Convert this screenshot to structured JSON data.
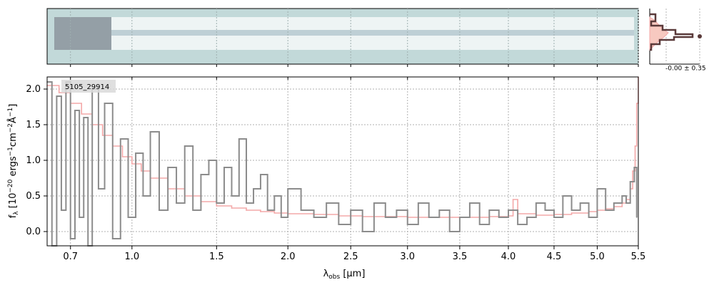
{
  "chart_data": {
    "type": "line",
    "object_label": "5105_29914",
    "xlabel": "λobs [μm]",
    "xlabel_parts": {
      "symbol": "λ",
      "subscript": "obs",
      "unit": " [μm]"
    },
    "ylabel": "fλ [10−20 ergs−1cm−2Å−1]",
    "ylabel_parts": {
      "f": "f",
      "fsub": "λ",
      "a": " [10",
      "e1": "−20",
      "b": " ergs",
      "e2": "−1",
      "c": "cm",
      "e3": "−2",
      "d": "Å",
      "e4": "−1",
      "end": "]"
    },
    "x_ticks": [
      0.7,
      1.0,
      1.5,
      2.0,
      2.5,
      3.0,
      3.5,
      4.0,
      4.5,
      5.0,
      5.5
    ],
    "x_tick_labels": [
      "0.7",
      "1.0",
      "1.5",
      "2.0",
      "2.5",
      "3.0",
      "3.5",
      "4.0",
      "4.5",
      "5.0",
      "5.5"
    ],
    "y_ticks": [
      0.0,
      0.5,
      1.0,
      1.5,
      2.0
    ],
    "y_tick_labels": [
      "0.0",
      "0.5",
      "1.0",
      "1.5",
      "2.0"
    ],
    "xlim": [
      0.6,
      5.5
    ],
    "ylim": [
      -0.2,
      2.17
    ],
    "scale": "sqrt",
    "grid": true,
    "side_label": "-0.00 ± 0.35",
    "colors": {
      "data": "#8c8c8c",
      "model": "#f4a8a8",
      "panel2d_bg": "#c2d9d9",
      "profile": "#5a3a3a",
      "profile_fill": "#f7c9c0"
    },
    "series": [
      {
        "role": "data",
        "x": [
          0.6,
          0.62,
          0.64,
          0.66,
          0.68,
          0.7,
          0.72,
          0.74,
          0.76,
          0.78,
          0.8,
          0.83,
          0.86,
          0.9,
          0.94,
          0.98,
          1.02,
          1.06,
          1.1,
          1.15,
          1.2,
          1.25,
          1.3,
          1.35,
          1.4,
          1.45,
          1.5,
          1.55,
          1.6,
          1.65,
          1.7,
          1.75,
          1.8,
          1.85,
          1.9,
          1.95,
          2.0,
          2.1,
          2.2,
          2.3,
          2.4,
          2.5,
          2.6,
          2.7,
          2.8,
          2.9,
          3.0,
          3.1,
          3.2,
          3.3,
          3.4,
          3.5,
          3.6,
          3.7,
          3.8,
          3.9,
          4.0,
          4.1,
          4.2,
          4.3,
          4.4,
          4.5,
          4.6,
          4.7,
          4.8,
          4.9,
          5.0,
          5.1,
          5.2,
          5.3,
          5.35,
          5.4,
          5.45,
          5.48
        ],
        "y": [
          2.1,
          -0.2,
          1.9,
          0.3,
          2.1,
          -0.1,
          1.7,
          0.2,
          1.6,
          -0.2,
          2.0,
          0.6,
          1.8,
          -0.1,
          1.3,
          0.2,
          1.1,
          0.5,
          1.4,
          0.3,
          0.9,
          0.4,
          1.2,
          0.3,
          0.8,
          1.0,
          0.4,
          0.9,
          0.5,
          1.3,
          0.4,
          0.6,
          0.8,
          0.3,
          0.5,
          0.2,
          0.6,
          0.3,
          0.2,
          0.4,
          0.1,
          0.3,
          0.0,
          0.4,
          0.2,
          0.3,
          0.1,
          0.4,
          0.2,
          0.3,
          0.0,
          0.2,
          0.4,
          0.1,
          0.3,
          0.2,
          0.3,
          0.1,
          0.2,
          0.4,
          0.3,
          0.2,
          0.5,
          0.3,
          0.4,
          0.2,
          0.6,
          0.3,
          0.4,
          0.5,
          0.4,
          0.7,
          0.9,
          0.2
        ]
      },
      {
        "role": "model",
        "x": [
          0.6,
          0.65,
          0.7,
          0.75,
          0.8,
          0.85,
          0.9,
          0.95,
          1.0,
          1.05,
          1.1,
          1.2,
          1.3,
          1.4,
          1.5,
          1.6,
          1.7,
          1.8,
          1.9,
          2.0,
          2.2,
          2.4,
          2.6,
          2.8,
          3.0,
          3.2,
          3.4,
          3.6,
          3.8,
          4.0,
          4.05,
          4.1,
          4.3,
          4.5,
          4.7,
          4.9,
          5.0,
          5.1,
          5.2,
          5.3,
          5.35,
          5.4,
          5.43,
          5.46,
          5.48,
          5.5
        ],
        "y": [
          2.05,
          1.95,
          1.8,
          1.65,
          1.5,
          1.35,
          1.2,
          1.05,
          0.95,
          0.85,
          0.75,
          0.6,
          0.5,
          0.42,
          0.36,
          0.33,
          0.3,
          0.28,
          0.26,
          0.25,
          0.24,
          0.22,
          0.21,
          0.21,
          0.2,
          0.2,
          0.2,
          0.2,
          0.21,
          0.22,
          0.45,
          0.25,
          0.23,
          0.24,
          0.26,
          0.28,
          0.3,
          0.32,
          0.35,
          0.4,
          0.45,
          0.6,
          0.85,
          1.2,
          1.8,
          2.17
        ]
      }
    ]
  }
}
